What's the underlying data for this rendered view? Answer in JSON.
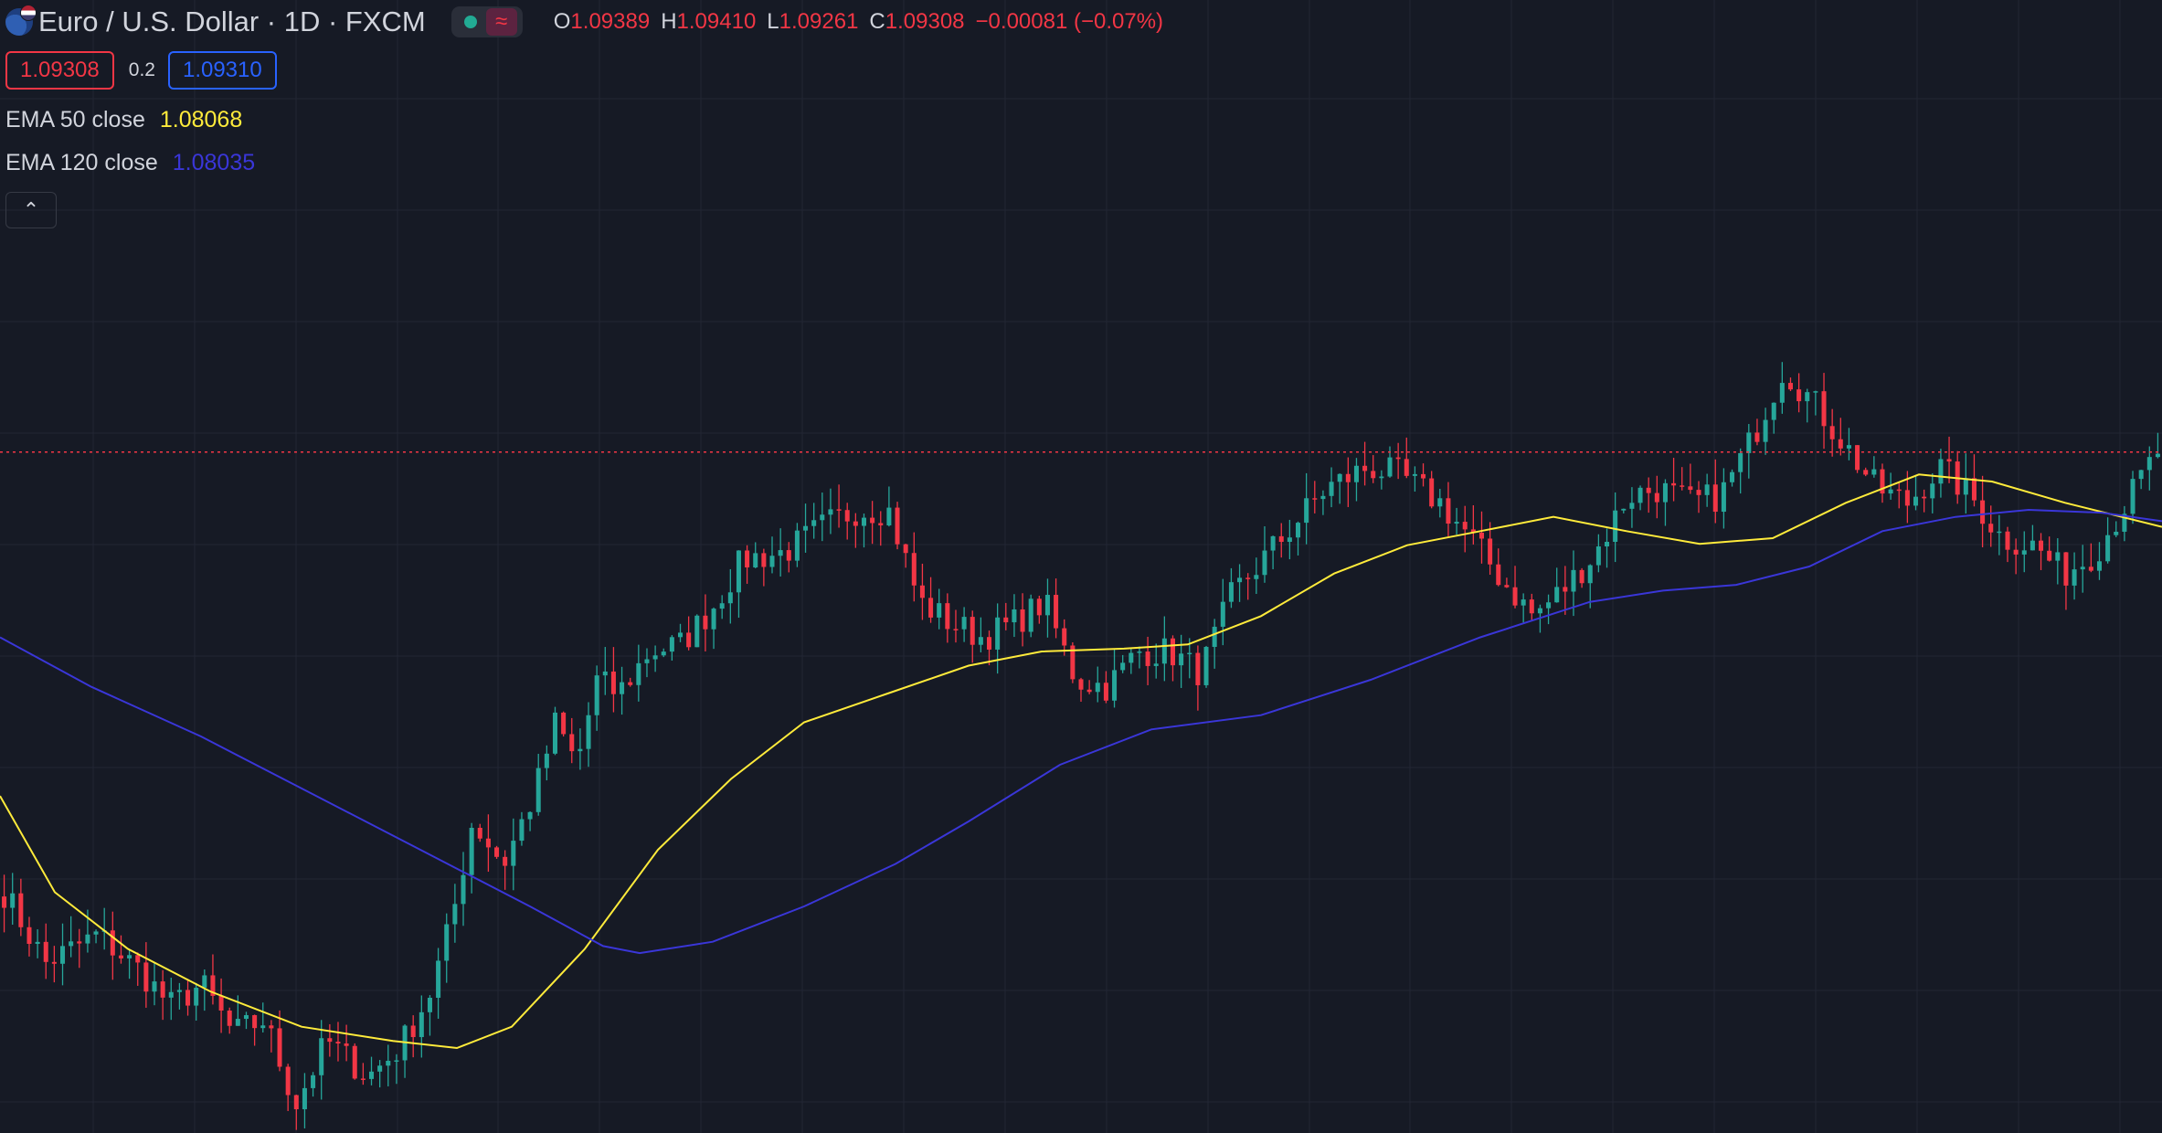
{
  "header": {
    "symbol_title": "Euro / U.S. Dollar · 1D · FXCM",
    "ohlc": {
      "open_label": "O",
      "open": "1.09389",
      "high_label": "H",
      "high": "1.09410",
      "low_label": "L",
      "low": "1.09261",
      "close_label": "C",
      "close": "1.09308",
      "change": "−0.00081 (−0.07%)"
    }
  },
  "trade": {
    "sell_price": "1.09308",
    "spread": "0.2",
    "buy_price": "1.09310"
  },
  "indicators": [
    {
      "label": "EMA 50 close",
      "value": "1.08068",
      "color": "#ffeb3b"
    },
    {
      "label": "EMA 120 close",
      "value": "1.08035",
      "color": "#3a36d8"
    }
  ],
  "colors": {
    "background": "#161a25",
    "grid": "#222633",
    "up": "#26a69a",
    "down": "#f23645",
    "ema50": "#ffeb3b",
    "ema120": "#3a36d8",
    "price_line": "#f23645"
  },
  "icons": {
    "collapse": "chevron-up-icon",
    "logo": "eurusd-flag-icon",
    "status": "market-open-dot-icon"
  },
  "chart_data": {
    "type": "candlestick",
    "current_price": 1.09308,
    "candles_count": 259,
    "price_range": [
      1.045,
      1.125
    ],
    "ema_series": [
      {
        "name": "EMA 50 close",
        "last": 1.08068
      },
      {
        "name": "EMA 120 close",
        "last": 1.08035
      }
    ],
    "grid": true
  }
}
